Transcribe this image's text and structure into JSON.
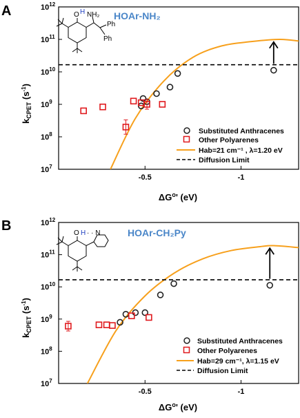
{
  "chart_data": [
    {
      "type": "scatter",
      "panel": "A",
      "annotation": "HOAr-NH₂",
      "xlabel": "ΔG°' (eV)",
      "ylabel": "kCPET (s⁻¹)",
      "xlim": [
        -0.05,
        -1.3
      ],
      "ylim": [
        7,
        12
      ],
      "y_scale": "log10",
      "x_ticks": [
        {
          "value": -0.5,
          "label": "-0.5"
        },
        {
          "value": -1.0,
          "label": "-1"
        }
      ],
      "y_ticks": [
        {
          "value": 7,
          "base": "10",
          "exp": "7"
        },
        {
          "value": 8,
          "base": "10",
          "exp": "8"
        },
        {
          "value": 9,
          "base": "10",
          "exp": "9"
        },
        {
          "value": 10,
          "base": "10",
          "exp": "10"
        },
        {
          "value": 11,
          "base": "10",
          "exp": "11"
        },
        {
          "value": 12,
          "base": "10",
          "exp": "12"
        }
      ],
      "legend": {
        "placement": "bottom-right",
        "items": [
          {
            "label": "Substituted Anthracenes"
          },
          {
            "label": "Other Polyarenes"
          },
          {
            "label": "Hab=21 cm⁻¹ , λ=1.20 eV"
          },
          {
            "label": "Diffusion Limit"
          }
        ]
      },
      "series": [
        {
          "name": "Substituted Anthracenes",
          "marker": "circle",
          "color": "#222222",
          "x": [
            -0.48,
            -0.49,
            -0.51,
            -0.56,
            -0.63,
            -0.67,
            -1.17
          ],
          "y": [
            8.95,
            9.18,
            9.08,
            9.33,
            9.53,
            9.95,
            10.05
          ]
        },
        {
          "name": "Other Polyarenes",
          "marker": "square",
          "color": "#e0191d",
          "x": [
            -0.18,
            -0.28,
            -0.4,
            -0.44,
            -0.48,
            -0.51,
            -0.59
          ],
          "y": [
            8.8,
            8.92,
            8.3,
            9.1,
            9.05,
            9.0,
            9.0
          ],
          "yerr": [
            0.0,
            0.0,
            0.22,
            0.0,
            0.0,
            0.15,
            0.0
          ]
        },
        {
          "name": "Hab=21 cm⁻¹ , λ=1.20 eV",
          "type": "line",
          "color": "#f7a01c",
          "x": [
            -0.32,
            -0.45,
            -0.6,
            -0.75,
            -0.9,
            -1.05,
            -1.2,
            -1.3
          ],
          "y": [
            7.0,
            8.57,
            9.73,
            10.45,
            10.8,
            10.93,
            11.0,
            10.95
          ]
        },
        {
          "name": "Diffusion Limit",
          "type": "line",
          "style": "dashed",
          "color": "#000000",
          "y_const": 10.22
        }
      ],
      "arrow": {
        "x": -1.17,
        "y_from": 10.25,
        "y_to": 10.92
      }
    },
    {
      "type": "scatter",
      "panel": "B",
      "annotation": "HOAr-CH₂Py",
      "xlabel": "ΔG°' (eV)",
      "ylabel": "kCPET (s⁻¹)",
      "xlim": [
        -0.05,
        -1.3
      ],
      "ylim": [
        7,
        12
      ],
      "y_scale": "log10",
      "x_ticks": [
        {
          "value": -0.5,
          "label": "-0.5"
        },
        {
          "value": -1.0,
          "label": "-1"
        }
      ],
      "y_ticks": [
        {
          "value": 7,
          "base": "10",
          "exp": "7"
        },
        {
          "value": 8,
          "base": "10",
          "exp": "8"
        },
        {
          "value": 9,
          "base": "10",
          "exp": "9"
        },
        {
          "value": 10,
          "base": "10",
          "exp": "10"
        },
        {
          "value": 11,
          "base": "10",
          "exp": "11"
        },
        {
          "value": 12,
          "base": "10",
          "exp": "12"
        }
      ],
      "legend": {
        "placement": "bottom-right",
        "items": [
          {
            "label": "Substituted Anthracenes"
          },
          {
            "label": "Other Polyarenes"
          },
          {
            "label": "Hab=29 cm⁻¹, λ=1.15 eV"
          },
          {
            "label": "Diffusion Limit"
          }
        ]
      },
      "series": [
        {
          "name": "Substituted Anthracenes",
          "marker": "circle",
          "color": "#222222",
          "x": [
            -0.37,
            -0.4,
            -0.45,
            -0.5,
            -0.58,
            -0.65,
            -1.15
          ],
          "y": [
            8.9,
            9.15,
            9.2,
            9.2,
            9.75,
            10.1,
            10.05
          ]
        },
        {
          "name": "Other Polyarenes",
          "marker": "square",
          "color": "#e0191d",
          "x": [
            -0.1,
            -0.26,
            -0.3,
            -0.33,
            -0.43,
            -0.52
          ],
          "y": [
            8.78,
            8.82,
            8.82,
            8.8,
            9.1,
            9.05
          ],
          "yerr": [
            0.15,
            0.0,
            0.0,
            0.0,
            0.0,
            0.0
          ]
        },
        {
          "name": "Hab=29 cm⁻¹, λ=1.15 eV",
          "type": "line",
          "color": "#f7a01c",
          "x": [
            -0.2,
            -0.35,
            -0.5,
            -0.65,
            -0.8,
            -0.95,
            -1.1,
            -1.17,
            -1.3
          ],
          "y": [
            7.0,
            8.65,
            9.72,
            10.42,
            10.87,
            11.13,
            11.25,
            11.28,
            11.22
          ]
        },
        {
          "name": "Diffusion Limit",
          "type": "line",
          "style": "dashed",
          "color": "#000000",
          "y_const": 10.22
        }
      ],
      "arrow": {
        "x": -1.15,
        "y_from": 10.25,
        "y_to": 11.2
      }
    }
  ]
}
